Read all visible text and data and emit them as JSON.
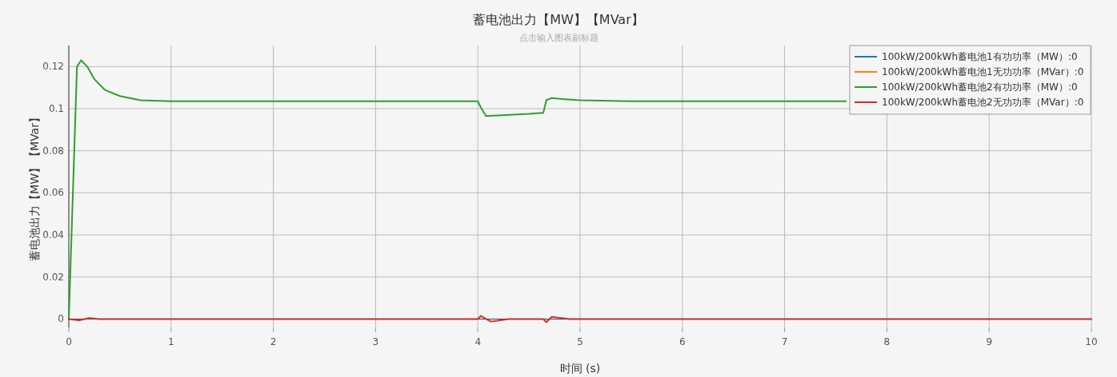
{
  "chart_data": {
    "type": "line",
    "title": "蓄电池出力【MW】【MVar】",
    "subtitle": "点击输入图表副标题",
    "xlabel": "时间 (s)",
    "ylabel": "蓄电池出力【MW】【MVar】",
    "xlim": [
      0,
      10
    ],
    "xticks": [
      0,
      1,
      2,
      3,
      4,
      5,
      6,
      7,
      8,
      9,
      10
    ],
    "ylim": [
      -0.004,
      0.13
    ],
    "yticks": [
      0,
      0.02,
      0.04,
      0.06,
      0.08,
      0.1,
      0.12
    ],
    "grid": true,
    "legend": "top right",
    "line_style": "solid",
    "marker": "none",
    "series": [
      {
        "name": "100kW/200kWh蓄电池1有功功率（MW）:0",
        "color": "#1f77b4"
      },
      {
        "name": "100kW/200kWh蓄电池1无功功率（MVar）:0",
        "color": "#ff7f0e"
      },
      {
        "name": "100kW/200kWh蓄电池2有功功率（MW）:0",
        "color": "#2ca02c",
        "x": [
          0,
          0.04,
          0.08,
          0.12,
          0.18,
          0.25,
          0.35,
          0.5,
          0.7,
          1,
          1.5,
          2,
          3,
          4,
          4.03,
          4.08,
          4.2,
          4.5,
          4.64,
          4.67,
          4.72,
          4.85,
          5,
          5.5,
          6,
          7,
          7.6
        ],
        "values": [
          0,
          0.06,
          0.12,
          0.123,
          0.12,
          0.114,
          0.109,
          0.106,
          0.104,
          0.1035,
          0.1035,
          0.1035,
          0.1035,
          0.1035,
          0.1005,
          0.0965,
          0.0968,
          0.0975,
          0.098,
          0.104,
          0.105,
          0.1045,
          0.104,
          0.1035,
          0.1035,
          0.1035,
          0.1035
        ]
      },
      {
        "name": "100kW/200kWh蓄电池2无功功率（MVar）:0",
        "color": "#d62728",
        "x": [
          0,
          0.05,
          0.1,
          0.2,
          0.3,
          1,
          4,
          4.03,
          4.08,
          4.13,
          4.3,
          4.64,
          4.67,
          4.72,
          4.8,
          4.9,
          10
        ],
        "values": [
          0,
          -0.0003,
          -0.0006,
          0.0005,
          0,
          0,
          0,
          0.0015,
          0,
          -0.0012,
          0,
          0,
          -0.0015,
          0.001,
          0.0006,
          0,
          0
        ]
      }
    ]
  }
}
